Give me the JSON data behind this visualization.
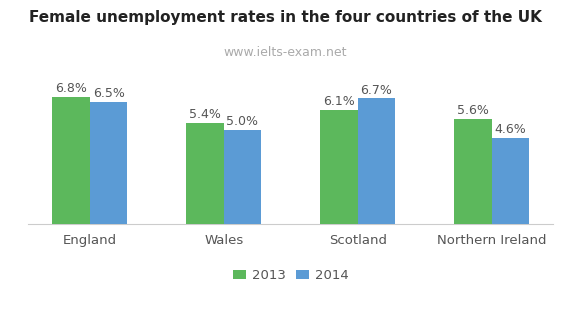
{
  "title": "Female unemployment rates in the four countries of the UK",
  "subtitle": "www.ielts-exam.net",
  "categories": [
    "England",
    "Wales",
    "Scotland",
    "Northern Ireland"
  ],
  "series": [
    {
      "label": "2013",
      "values": [
        6.8,
        5.4,
        6.1,
        5.6
      ],
      "color": "#5cb85c"
    },
    {
      "label": "2014",
      "values": [
        6.5,
        5.0,
        6.7,
        4.6
      ],
      "color": "#5b9bd5"
    }
  ],
  "ylim": [
    0,
    8.2
  ],
  "bar_width": 0.28,
  "title_fontsize": 11,
  "subtitle_fontsize": 9,
  "tick_fontsize": 9.5,
  "value_fontsize": 9,
  "legend_fontsize": 9.5,
  "background_color": "#ffffff",
  "subtitle_color": "#aaaaaa",
  "text_color": "#555555"
}
